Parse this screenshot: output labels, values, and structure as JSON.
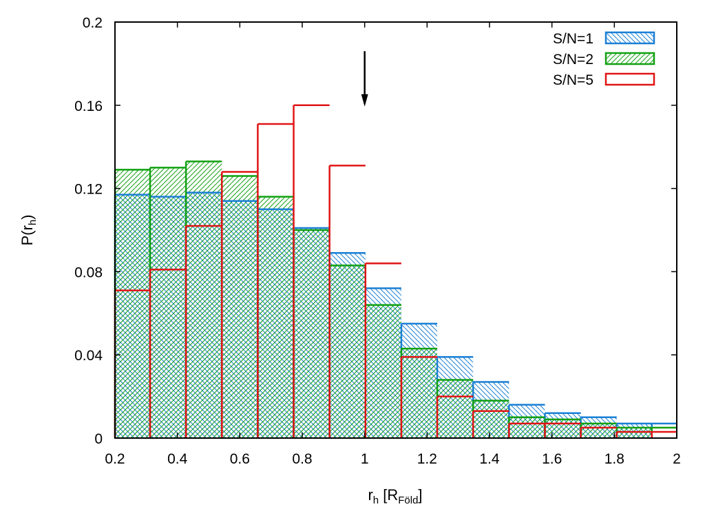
{
  "chart_data": {
    "type": "bar",
    "subtype": "histogram",
    "xlabel": {
      "main": "r",
      "sub": "h",
      "rest": " [R",
      "sub2": "Föld",
      "end": "]"
    },
    "ylabel": {
      "main": "P(r",
      "sub": "h",
      "end": ")"
    },
    "xlim": [
      0.2,
      2.0
    ],
    "ylim": [
      0,
      0.2
    ],
    "xticks": [
      "0.2",
      "0.4",
      "0.6",
      "0.8",
      "1",
      "1.2",
      "1.4",
      "1.6",
      "1.8",
      "2"
    ],
    "yticks": [
      "0",
      "0.04",
      "0.08",
      "0.12",
      "0.16",
      "0.2"
    ],
    "legend_position": "top-right",
    "bin_edges": [
      0.2,
      0.3125,
      0.4275,
      0.5425,
      0.6575,
      0.7725,
      0.8875,
      1.0025,
      1.1175,
      1.2325,
      1.3475,
      1.4625,
      1.5775,
      1.6925,
      1.8075,
      1.92
    ],
    "series": [
      {
        "name": "S/N=1",
        "color": "#1a7fd4",
        "fill": "hatch-backslash",
        "values": [
          0.117,
          0.116,
          0.118,
          0.114,
          0.11,
          0.101,
          0.089,
          0.072,
          0.055,
          0.039,
          0.027,
          0.016,
          0.012,
          0.01,
          0.007
        ]
      },
      {
        "name": "S/N=2",
        "color": "#11a011",
        "fill": "hatch-slash",
        "values": [
          0.129,
          0.13,
          0.133,
          0.126,
          0.116,
          0.1,
          0.083,
          0.064,
          0.043,
          0.028,
          0.018,
          0.01,
          0.009,
          0.007,
          0.005
        ]
      },
      {
        "name": "S/N=5",
        "color": "#e01414",
        "fill": "none",
        "values": [
          0.071,
          0.081,
          0.102,
          0.128,
          0.151,
          0.16,
          0.131,
          0.084,
          0.039,
          0.02,
          0.013,
          0.007,
          0.007,
          0.005,
          0.003
        ]
      }
    ],
    "annotation": {
      "type": "arrow-down",
      "x": 1.0,
      "y_from": 0.186,
      "y_to": 0.16
    }
  }
}
